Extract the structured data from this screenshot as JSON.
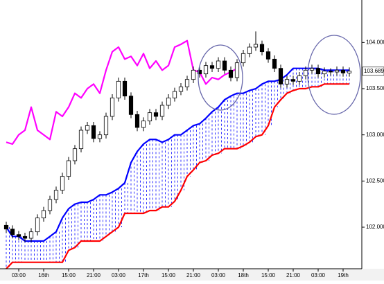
{
  "chart_data": {
    "type": "candlestick",
    "open": [
      102.02,
      101.98,
      101.92,
      101.9,
      101.88,
      101.95,
      102.1,
      102.18,
      102.3,
      102.4,
      102.55,
      102.72,
      102.85,
      103.05,
      103.1,
      102.96,
      103.0,
      103.2,
      103.4,
      103.58,
      103.42,
      103.22,
      103.08,
      103.15,
      103.24,
      103.2,
      103.32,
      103.4,
      103.47,
      103.52,
      103.6,
      103.7,
      103.66,
      103.75,
      103.72,
      103.8,
      103.7,
      103.62,
      103.78,
      103.88,
      103.95,
      103.98,
      103.9,
      103.82,
      103.72,
      103.55,
      103.6,
      103.58,
      103.64,
      103.7,
      103.72,
      103.66,
      103.69,
      103.68,
      103.7,
      103.67
    ],
    "high": [
      102.06,
      102.02,
      101.96,
      101.94,
      101.99,
      102.14,
      102.22,
      102.34,
      102.44,
      102.59,
      102.76,
      102.89,
      103.09,
      103.14,
      103.14,
      103.04,
      103.24,
      103.44,
      103.62,
      103.62,
      103.46,
      103.26,
      103.19,
      103.28,
      103.28,
      103.36,
      103.44,
      103.51,
      103.56,
      103.64,
      103.74,
      103.74,
      103.79,
      103.79,
      103.84,
      103.84,
      103.74,
      103.82,
      103.92,
      103.99,
      104.12,
      104.02,
      103.94,
      103.86,
      103.76,
      103.64,
      103.64,
      103.68,
      103.74,
      103.76,
      103.76,
      103.73,
      103.72,
      103.74,
      103.74,
      103.73
    ],
    "low": [
      101.94,
      101.88,
      101.86,
      101.84,
      101.84,
      101.91,
      102.06,
      102.14,
      102.26,
      102.36,
      102.51,
      102.68,
      102.81,
      103.01,
      102.92,
      102.92,
      102.96,
      103.16,
      103.36,
      103.38,
      103.18,
      103.04,
      103.04,
      103.11,
      103.16,
      103.16,
      103.28,
      103.36,
      103.43,
      103.48,
      103.56,
      103.62,
      103.62,
      103.68,
      103.68,
      103.66,
      103.58,
      103.58,
      103.74,
      103.84,
      103.91,
      103.86,
      103.78,
      103.68,
      103.51,
      103.51,
      103.54,
      103.54,
      103.6,
      103.66,
      103.62,
      103.62,
      103.64,
      103.64,
      103.63,
      103.63
    ],
    "close": [
      101.98,
      101.92,
      101.9,
      101.88,
      101.95,
      102.1,
      102.18,
      102.3,
      102.4,
      102.55,
      102.72,
      102.85,
      103.05,
      103.1,
      102.96,
      103.0,
      103.2,
      103.4,
      103.58,
      103.42,
      103.22,
      103.08,
      103.15,
      103.24,
      103.2,
      103.32,
      103.4,
      103.47,
      103.52,
      103.6,
      103.7,
      103.66,
      103.75,
      103.72,
      103.8,
      103.7,
      103.62,
      103.78,
      103.88,
      103.95,
      103.98,
      103.9,
      103.82,
      103.72,
      103.55,
      103.6,
      103.58,
      103.64,
      103.7,
      103.72,
      103.66,
      103.69,
      103.68,
      103.7,
      103.67,
      103.689
    ],
    "series": [
      {
        "color": "#0000ff",
        "values": [
          102.0,
          101.9,
          101.9,
          101.85,
          101.85,
          101.85,
          101.85,
          101.9,
          101.95,
          102.1,
          102.2,
          102.25,
          102.27,
          102.27,
          102.3,
          102.35,
          102.35,
          102.38,
          102.42,
          102.48,
          102.7,
          102.82,
          102.9,
          102.95,
          102.95,
          102.92,
          102.95,
          103.0,
          103.0,
          103.05,
          103.1,
          103.12,
          103.18,
          103.25,
          103.3,
          103.38,
          103.42,
          103.45,
          103.45,
          103.48,
          103.5,
          103.55,
          103.58,
          103.58,
          103.6,
          103.65,
          103.72,
          103.72,
          103.72,
          103.72,
          103.72,
          103.7,
          103.7,
          103.7,
          103.7,
          103.7
        ]
      },
      {
        "color": "#ff0000",
        "values": [
          101.55,
          101.62,
          101.62,
          101.62,
          101.62,
          101.62,
          101.62,
          101.62,
          101.62,
          101.62,
          101.75,
          101.78,
          101.85,
          101.85,
          101.85,
          101.85,
          101.9,
          101.95,
          102.0,
          102.15,
          102.15,
          102.15,
          102.15,
          102.18,
          102.18,
          102.22,
          102.22,
          102.28,
          102.4,
          102.55,
          102.62,
          102.7,
          102.72,
          102.78,
          102.8,
          102.85,
          102.85,
          102.85,
          102.88,
          102.92,
          102.98,
          103.0,
          103.1,
          103.3,
          103.38,
          103.45,
          103.48,
          103.5,
          103.5,
          103.52,
          103.52,
          103.55,
          103.55,
          103.55,
          103.55,
          103.55
        ]
      },
      {
        "color": "#ff00ff",
        "values": [
          102.92,
          102.9,
          103.0,
          103.05,
          103.3,
          103.05,
          103.0,
          102.95,
          103.25,
          103.2,
          103.3,
          103.45,
          103.4,
          103.5,
          103.55,
          103.45,
          103.7,
          103.9,
          103.95,
          103.82,
          103.85,
          103.75,
          103.88,
          103.72,
          103.8,
          103.7,
          103.75,
          103.95,
          103.98,
          104.02,
          103.7,
          103.68,
          103.55,
          103.62,
          103.6,
          103.65,
          103.68,
          103.72,
          null,
          null,
          null,
          null,
          null,
          null,
          null,
          null,
          null,
          null,
          null,
          null,
          null,
          null,
          null,
          null,
          null,
          null
        ]
      }
    ],
    "cloud_color": "#0000ff",
    "xlim": [
      -1,
      57
    ],
    "xticks": [
      {
        "value": 2,
        "label": "03:00"
      },
      {
        "value": 6,
        "label": "16th"
      },
      {
        "value": 10,
        "label": "15:00"
      },
      {
        "value": 14,
        "label": "21:00"
      },
      {
        "value": 18,
        "label": "03:00"
      },
      {
        "value": 22,
        "label": "17th"
      },
      {
        "value": 26,
        "label": "15:00"
      },
      {
        "value": 30,
        "label": "21:00"
      },
      {
        "value": 34,
        "label": "03:00"
      },
      {
        "value": 38,
        "label": "18th"
      },
      {
        "value": 42,
        "label": "15:00"
      },
      {
        "value": 46,
        "label": "21:00"
      },
      {
        "value": 50,
        "label": "03:00"
      },
      {
        "value": 54,
        "label": "19th"
      }
    ],
    "ylim": [
      101.55,
      104.46
    ],
    "yticks": [
      {
        "value": 102,
        "label": "102.000"
      },
      {
        "value": 102.5,
        "label": "102.500"
      },
      {
        "value": 103,
        "label": "103.000"
      },
      {
        "value": 103.5,
        "label": "103.500"
      },
      {
        "value": 104,
        "label": "104.000"
      }
    ]
  }
}
